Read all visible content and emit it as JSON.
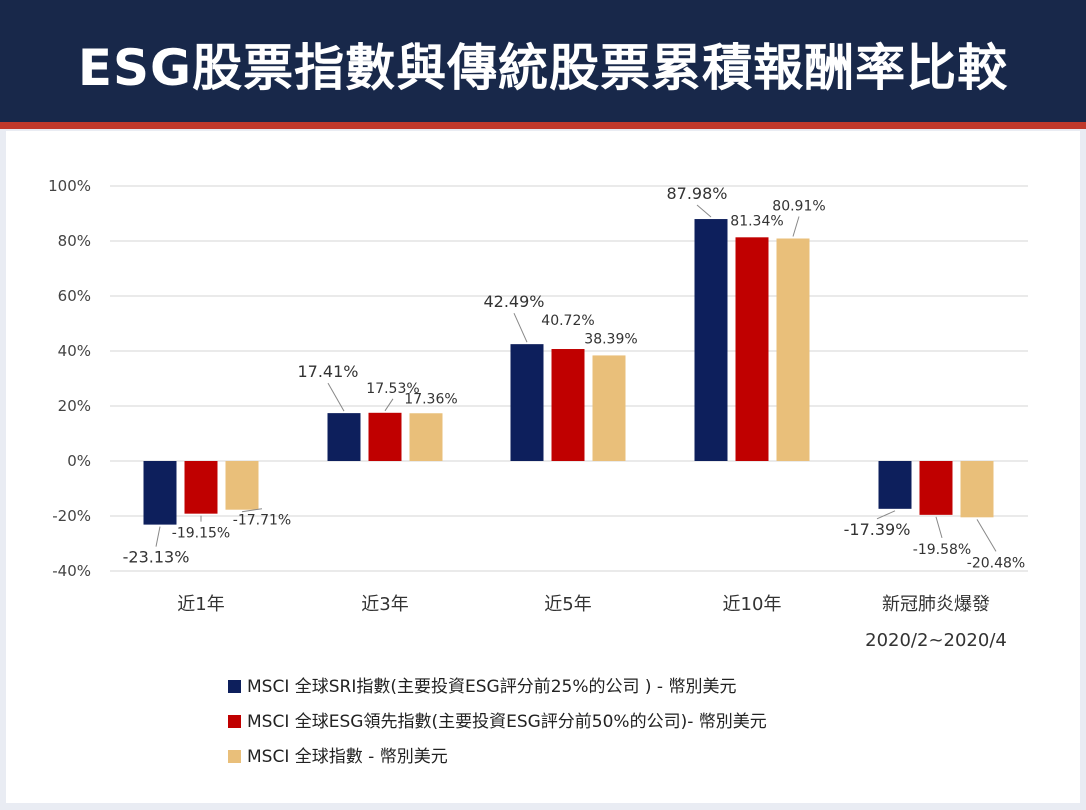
{
  "title": "ESG股票指數與傳統股票累積報酬率比較",
  "colors": {
    "header_bg": "#18284a",
    "accent_red": "#c0392b",
    "series": [
      "#0d1f5c",
      "#c00000",
      "#e9bf7a"
    ]
  },
  "chart_data": {
    "type": "bar",
    "title": "",
    "xlabel": "",
    "ylabel": "",
    "ylim": [
      -40,
      100
    ],
    "yticks": [
      100,
      80,
      60,
      40,
      20,
      0,
      -20,
      -40
    ],
    "ytick_labels": [
      "100%",
      "80%",
      "60%",
      "40%",
      "20%",
      "0%",
      "-20%",
      "-40%"
    ],
    "grid": true,
    "legend_position": "bottom",
    "categories": [
      "近1年",
      "近3年",
      "近5年",
      "近10年",
      "新冠肺炎爆發"
    ],
    "category_sublabels": [
      "",
      "",
      "",
      "",
      "2020/2~2020/4"
    ],
    "series": [
      {
        "name": "MSCI 全球SRI指數(主要投資ESG評分前25%的公司 ) - 幣別美元",
        "values": [
          -23.13,
          17.41,
          42.49,
          87.98,
          -17.39
        ],
        "labels": [
          "-23.13%",
          "17.41%",
          "42.49%",
          "87.98%",
          "-17.39%"
        ]
      },
      {
        "name": "MSCI 全球ESG領先指數(主要投資ESG評分前50%的公司)- 幣別美元",
        "values": [
          -19.15,
          17.53,
          40.72,
          81.34,
          -19.58
        ],
        "labels": [
          "-19.15%",
          "17.53%",
          "40.72%",
          "81.34%",
          "-19.58%"
        ]
      },
      {
        "name": "MSCI 全球指數 - 幣別美元",
        "values": [
          -17.71,
          17.36,
          38.39,
          80.91,
          -20.48
        ],
        "labels": [
          "-17.71%",
          "17.36%",
          "38.39%",
          "80.91%",
          "-20.48%"
        ]
      }
    ]
  }
}
